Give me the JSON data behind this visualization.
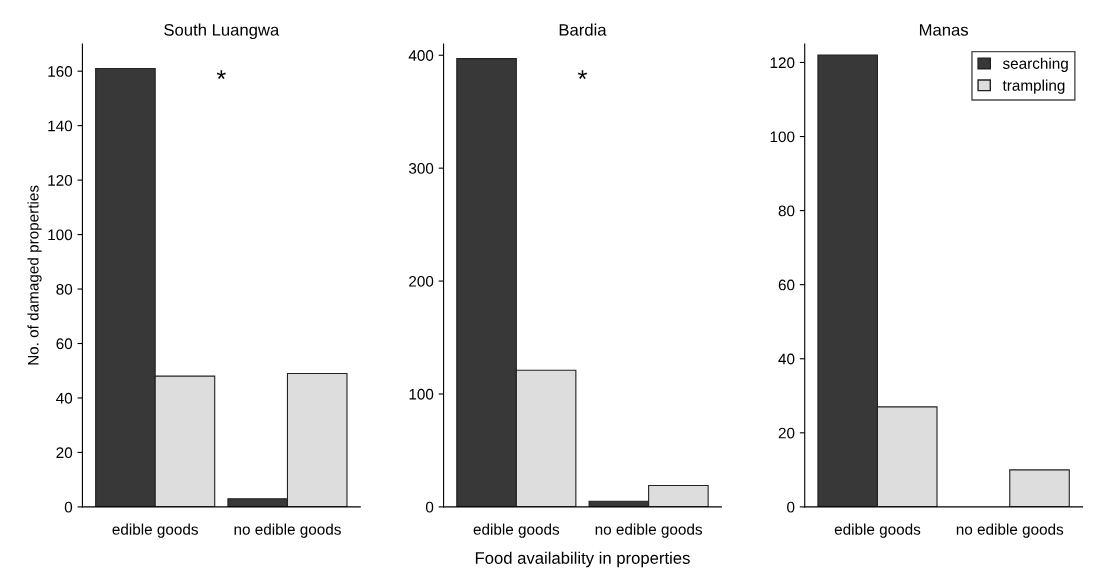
{
  "chart_data": [
    {
      "type": "bar",
      "title": "South Luangwa",
      "ylabel": "No. of damaged properties",
      "categories": [
        "edible goods",
        "no edible goods"
      ],
      "series": [
        {
          "color": "#383838",
          "values": [
            161,
            3
          ]
        },
        {
          "color": "#dddddd",
          "values": [
            48,
            49
          ]
        }
      ],
      "ylim": [
        0,
        170
      ],
      "yticks": [
        0,
        20,
        40,
        60,
        80,
        100,
        120,
        140,
        160
      ],
      "annotations": [
        "*"
      ],
      "grid": false
    },
    {
      "type": "bar",
      "title": "Bardia",
      "xlabel": "Food availability in properties",
      "categories": [
        "edible goods",
        "no edible goods"
      ],
      "series": [
        {
          "color": "#383838",
          "values": [
            397,
            5
          ]
        },
        {
          "color": "#dddddd",
          "values": [
            121,
            19
          ]
        }
      ],
      "ylim": [
        0,
        410
      ],
      "yticks": [
        0,
        100,
        200,
        300,
        400
      ],
      "annotations": [
        "*"
      ],
      "grid": false
    },
    {
      "type": "bar",
      "title": "Manas",
      "categories": [
        "edible goods",
        "no edible goods"
      ],
      "series": [
        {
          "name": "searching",
          "color": "#383838",
          "values": [
            122,
            0
          ]
        },
        {
          "name": "trampling",
          "color": "#dddddd",
          "values": [
            27,
            10
          ]
        }
      ],
      "ylim": [
        0,
        125
      ],
      "yticks": [
        0,
        20,
        40,
        60,
        80,
        100,
        120
      ],
      "legend": "top right",
      "grid": false
    }
  ]
}
